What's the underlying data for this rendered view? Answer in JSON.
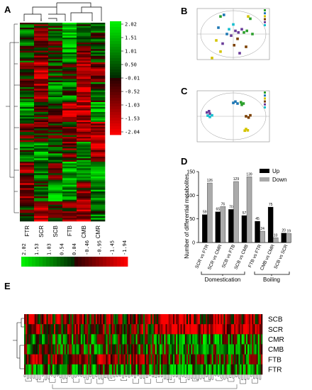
{
  "panels": {
    "A": "A",
    "B": "B",
    "C": "C",
    "D": "D",
    "E": "E"
  },
  "panel_a": {
    "columns": [
      "FTR",
      "SCR",
      "SCB",
      "FTB",
      "CMB",
      "CMR"
    ],
    "scale_ticks": [
      "2.02",
      "1.51",
      "1.01",
      "0.50",
      "-0.01",
      "-0.52",
      "-1.03",
      "-1.53",
      "-2.04"
    ]
  },
  "panel_e": {
    "rows": [
      "SCB",
      "SCR",
      "CMR",
      "CMB",
      "FTB",
      "FTR"
    ],
    "scale_ticks": [
      "2.02",
      "1.53",
      "1.03",
      "0.54",
      "0.04",
      "-0.46",
      "-0.95",
      "-1.45",
      "-1.94"
    ]
  },
  "colors": {
    "high": "#00d000",
    "low": "#ff0000",
    "mid": "#000000",
    "up": "#000000",
    "down": "#aaaaaa"
  },
  "chart_data": [
    {
      "type": "bar",
      "panel": "D",
      "title": "",
      "ylabel": "Number of differential metabolites",
      "categories": [
        "SCR vs FTR",
        "SCR vs CMR",
        "SCB vs FTB",
        "SCB vs CMB",
        "FTB vs FTR",
        "CMB vs CMR",
        "SCB vs SCR"
      ],
      "groups": [
        {
          "label": "Domestication",
          "categories": [
            "SCR vs FTR",
            "SCR vs CMR",
            "SCB vs FTB",
            "SCB vs CMB"
          ]
        },
        {
          "label": "Boiling",
          "categories": [
            "FTB vs FTR",
            "CMB vs CMR",
            "SCB vs SCR"
          ]
        }
      ],
      "series": [
        {
          "name": "Up",
          "values": [
            59,
            65,
            70,
            57,
            45,
            75,
            20
          ]
        },
        {
          "name": "Down",
          "values": [
            126,
            76,
            129,
            139,
            24,
            10,
            19
          ]
        }
      ],
      "ylim": [
        0,
        150
      ],
      "legend": "top-right"
    },
    {
      "type": "scatter",
      "panel": "B",
      "legend_colors": [
        "#2ca02c",
        "#1f77b4",
        "#d4c400",
        "#7b3f00",
        "#6a3d9a",
        "#17becf"
      ],
      "points": [
        {
          "x": -0.3,
          "y": 0.55,
          "c": 0
        },
        {
          "x": -0.22,
          "y": 0.6,
          "c": 1
        },
        {
          "x": 0.35,
          "y": 0.55,
          "c": 2
        },
        {
          "x": 0.4,
          "y": 0.48,
          "c": 0
        },
        {
          "x": -0.35,
          "y": 0.2,
          "c": 1
        },
        {
          "x": -0.1,
          "y": 0.15,
          "c": 5
        },
        {
          "x": 0.05,
          "y": 0.1,
          "c": 4
        },
        {
          "x": 0.12,
          "y": 0.05,
          "c": 4
        },
        {
          "x": 0.2,
          "y": 0.15,
          "c": 4
        },
        {
          "x": 0.25,
          "y": 0.05,
          "c": 0
        },
        {
          "x": 0.32,
          "y": 0.1,
          "c": 0
        },
        {
          "x": 0.45,
          "y": 0.0,
          "c": 0
        },
        {
          "x": -0.05,
          "y": -0.05,
          "c": 4
        },
        {
          "x": 0.1,
          "y": -0.15,
          "c": 3
        },
        {
          "x": -0.4,
          "y": -0.2,
          "c": 2
        },
        {
          "x": -0.25,
          "y": -0.3,
          "c": 4
        },
        {
          "x": 0.02,
          "y": -0.35,
          "c": 3
        },
        {
          "x": 0.3,
          "y": -0.4,
          "c": 3
        },
        {
          "x": -0.3,
          "y": -0.55,
          "c": 2
        },
        {
          "x": 0.15,
          "y": -0.6,
          "c": 4
        },
        {
          "x": -0.5,
          "y": -0.75,
          "c": 2
        },
        {
          "x": -0.15,
          "y": 0.0,
          "c": 1
        },
        {
          "x": 0.0,
          "y": 0.3,
          "c": 5
        }
      ]
    },
    {
      "type": "scatter",
      "panel": "C",
      "legend_colors": [
        "#2ca02c",
        "#1f77b4",
        "#d4c400",
        "#7b3f00",
        "#6a3d9a",
        "#17becf"
      ],
      "points": [
        {
          "x": 0.0,
          "y": 0.42,
          "c": 1
        },
        {
          "x": 0.05,
          "y": 0.46,
          "c": 1
        },
        {
          "x": 0.1,
          "y": 0.4,
          "c": 1
        },
        {
          "x": 0.18,
          "y": 0.44,
          "c": 0
        },
        {
          "x": 0.24,
          "y": 0.4,
          "c": 0
        },
        {
          "x": 0.2,
          "y": 0.36,
          "c": 0
        },
        {
          "x": -0.62,
          "y": 0.12,
          "c": 4
        },
        {
          "x": -0.57,
          "y": 0.16,
          "c": 4
        },
        {
          "x": -0.55,
          "y": 0.08,
          "c": 4
        },
        {
          "x": -0.6,
          "y": 0.02,
          "c": 5
        },
        {
          "x": -0.55,
          "y": -0.02,
          "c": 5
        },
        {
          "x": -0.5,
          "y": 0.03,
          "c": 5
        },
        {
          "x": 0.3,
          "y": 0.0,
          "c": 3
        },
        {
          "x": 0.36,
          "y": -0.04,
          "c": 3
        },
        {
          "x": 0.4,
          "y": 0.03,
          "c": 3
        },
        {
          "x": 0.3,
          "y": -0.4,
          "c": 2
        },
        {
          "x": 0.34,
          "y": -0.44,
          "c": 2
        },
        {
          "x": 0.27,
          "y": -0.45,
          "c": 2
        }
      ]
    }
  ]
}
